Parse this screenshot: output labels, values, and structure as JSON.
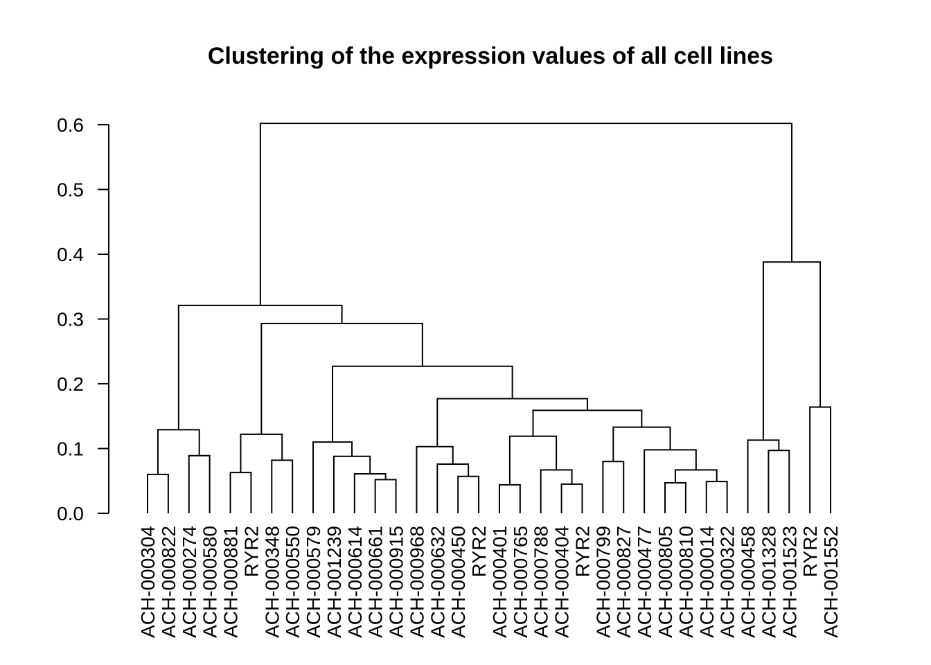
{
  "chart_data": {
    "type": "dendrogram",
    "title": "Clustering of the expression values of all cell lines",
    "xlabel": "",
    "ylabel": "",
    "ylim": [
      0,
      0.6
    ],
    "yticks": [
      {
        "value": 0.0,
        "label": "0.0"
      },
      {
        "value": 0.1,
        "label": "0.1"
      },
      {
        "value": 0.2,
        "label": "0.2"
      },
      {
        "value": 0.3,
        "label": "0.3"
      },
      {
        "value": 0.4,
        "label": "0.4"
      },
      {
        "value": 0.5,
        "label": "0.5"
      },
      {
        "value": 0.6,
        "label": "0.6"
      }
    ],
    "leaves": [
      "ACH-000304",
      "ACH-000822",
      "ACH-000274",
      "ACH-000580",
      "ACH-000881",
      "RYR2",
      "ACH-000348",
      "ACH-000550",
      "ACH-000579",
      "ACH-001239",
      "ACH-000614",
      "ACH-000661",
      "ACH-000915",
      "ACH-000968",
      "ACH-000632",
      "ACH-000450",
      "RYR2",
      "ACH-000401",
      "ACH-000765",
      "ACH-000788",
      "ACH-000404",
      "RYR2",
      "ACH-000799",
      "ACH-000827",
      "ACH-000477",
      "ACH-000805",
      "ACH-000810",
      "ACH-000014",
      "ACH-000322",
      "ACH-000458",
      "ACH-001328",
      "ACH-001523",
      "RYR2",
      "ACH-001552"
    ],
    "merges": [
      {
        "left": 0,
        "right": 1,
        "height": 0.06
      },
      {
        "left": 2,
        "right": 3,
        "height": 0.089
      },
      {
        "left": "m0",
        "right": "m1",
        "height": 0.129
      },
      {
        "left": 4,
        "right": 5,
        "height": 0.063
      },
      {
        "left": 6,
        "right": 7,
        "height": 0.082
      },
      {
        "left": "m3",
        "right": "m4",
        "height": 0.122
      },
      {
        "left": 11,
        "right": 12,
        "height": 0.052
      },
      {
        "left": 10,
        "right": "m6",
        "height": 0.061
      },
      {
        "left": 9,
        "right": "m7",
        "height": 0.088
      },
      {
        "left": 8,
        "right": "m8",
        "height": 0.11
      },
      {
        "left": 14,
        "right": 15,
        "height": 0.076
      },
      {
        "left": 15,
        "right": 16,
        "height": 0.057
      },
      {
        "left": 19,
        "right": 20,
        "height": 0.045
      },
      {
        "left": 18,
        "right": "m12",
        "height": 0.067
      },
      {
        "left": 17,
        "right": "m13",
        "height": 0.044
      },
      {
        "left": 26,
        "right": 27,
        "height": 0.049
      },
      {
        "left": 25,
        "right": "m15",
        "height": 0.067
      },
      {
        "left": 24,
        "right": "m16",
        "height": 0.047
      },
      {
        "left": 22,
        "right": 23,
        "height": 0.08
      },
      {
        "left": 30,
        "right": 31,
        "height": 0.097
      },
      {
        "left": 29,
        "right": "m19",
        "height": 0.113
      },
      {
        "left": 32,
        "right": 33,
        "height": 0.164
      }
    ],
    "segments": [
      {
        "x0": 0,
        "x1": 1,
        "h0": 0.0,
        "h1": 0.0,
        "top": 0.06
      },
      {
        "x0": 2,
        "x1": 3,
        "h0": 0.0,
        "h1": 0.0,
        "top": 0.089
      },
      {
        "x0": 0.5,
        "x1": 2.5,
        "h0": 0.06,
        "h1": 0.089,
        "top": 0.129
      },
      {
        "x0": 4,
        "x1": 5,
        "h0": 0.0,
        "h1": 0.0,
        "top": 0.063
      },
      {
        "x0": 6,
        "x1": 7,
        "h0": 0.0,
        "h1": 0.0,
        "top": 0.082
      },
      {
        "x0": 4.5,
        "x1": 6.5,
        "h0": 0.063,
        "h1": 0.082,
        "top": 0.122
      },
      {
        "x0": 11,
        "x1": 12,
        "h0": 0.0,
        "h1": 0.0,
        "top": 0.052
      },
      {
        "x0": 10,
        "x1": 11.5,
        "h0": 0.0,
        "h1": 0.052,
        "top": 0.061
      },
      {
        "x0": 9,
        "x1": 10.75,
        "h0": 0.0,
        "h1": 0.061,
        "top": 0.088
      },
      {
        "x0": 8,
        "x1": 9.875,
        "h0": 0.0,
        "h1": 0.088,
        "top": 0.11
      },
      {
        "x0": 15,
        "x1": 16,
        "h0": 0.0,
        "h1": 0.0,
        "top": 0.057
      },
      {
        "x0": 14,
        "x1": 15.5,
        "h0": 0.0,
        "h1": 0.057,
        "top": 0.076
      },
      {
        "x0": 13,
        "x1": 14.75,
        "h0": 0.0,
        "h1": 0.076,
        "top": 0.103
      },
      {
        "x0": 20,
        "x1": 21,
        "h0": 0.0,
        "h1": 0.0,
        "top": 0.045
      },
      {
        "x0": 19,
        "x1": 20.5,
        "h0": 0.0,
        "h1": 0.045,
        "top": 0.067
      },
      {
        "x0": 17,
        "x1": 18,
        "h0": 0.0,
        "h1": 0.0,
        "top": 0.044
      },
      {
        "x0": 17.5,
        "x1": 19.75,
        "h0": 0.044,
        "h1": 0.067,
        "top": 0.119
      },
      {
        "x0": 25,
        "x1": 26,
        "h0": 0.0,
        "h1": 0.0,
        "top": 0.047
      },
      {
        "x0": 27,
        "x1": 28,
        "h0": 0.0,
        "h1": 0.0,
        "top": 0.049
      },
      {
        "x0": 25.5,
        "x1": 27.5,
        "h0": 0.047,
        "h1": 0.049,
        "top": 0.067
      },
      {
        "x0": 24,
        "x1": 26.5,
        "h0": 0.0,
        "h1": 0.067,
        "top": 0.098
      },
      {
        "x0": 22,
        "x1": 23,
        "h0": 0.0,
        "h1": 0.0,
        "top": 0.08
      },
      {
        "x0": 22.5,
        "x1": 25.25,
        "h0": 0.08,
        "h1": 0.098,
        "top": 0.133
      },
      {
        "x0": 18.625,
        "x1": 23.875,
        "h0": 0.119,
        "h1": 0.133,
        "top": 0.159
      },
      {
        "x0": 14.0,
        "x1": 21.25,
        "h0": 0.103,
        "h1": 0.159,
        "top": 0.177
      },
      {
        "x0": 8.9375,
        "x1": 17.625,
        "h0": 0.11,
        "h1": 0.177,
        "top": 0.227
      },
      {
        "x0": 5.5,
        "x1": 13.28,
        "h0": 0.122,
        "h1": 0.227,
        "top": 0.293
      },
      {
        "x0": 1.5,
        "x1": 9.39,
        "h0": 0.129,
        "h1": 0.293,
        "top": 0.321
      },
      {
        "x0": 30,
        "x1": 31,
        "h0": 0.0,
        "h1": 0.0,
        "top": 0.097
      },
      {
        "x0": 29,
        "x1": 30.5,
        "h0": 0.0,
        "h1": 0.097,
        "top": 0.113
      },
      {
        "x0": 32,
        "x1": 33,
        "h0": 0.0,
        "h1": 0.0,
        "top": 0.164
      },
      {
        "x0": 29.75,
        "x1": 32.5,
        "h0": 0.113,
        "h1": 0.164,
        "top": 0.388
      },
      {
        "x0": 5.45,
        "x1": 31.125,
        "h0": 0.321,
        "h1": 0.388,
        "top": 0.602
      }
    ]
  }
}
